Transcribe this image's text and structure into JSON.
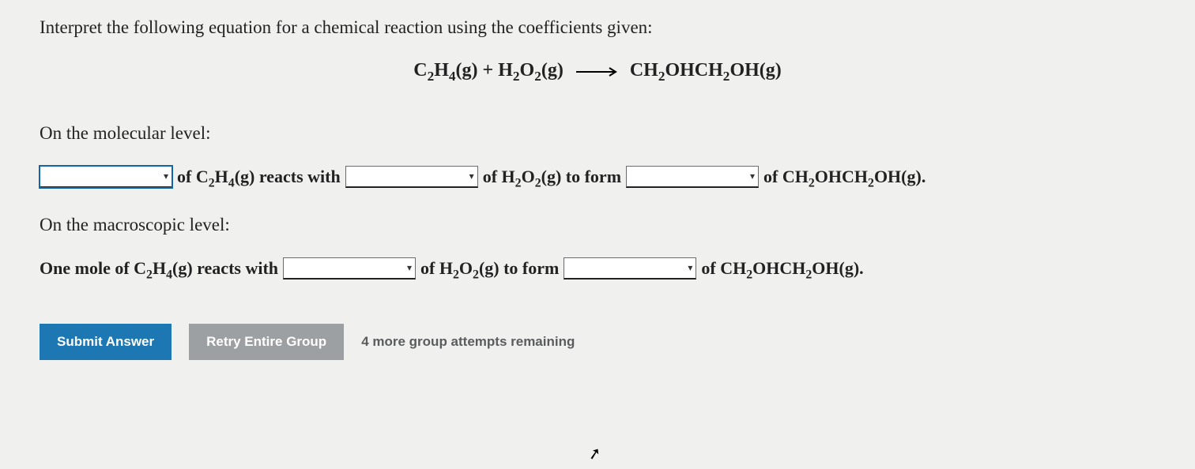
{
  "question": {
    "prompt": "Interpret the following equation for a chemical reaction using the coefficients given:",
    "equation": {
      "reactant1_html": "C<sub>2</sub>H<sub>4</sub>(g)",
      "plus": " + ",
      "reactant2_html": "H<sub>2</sub>O<sub>2</sub>(g)",
      "product_html": "CH<sub>2</sub>OHCH<sub>2</sub>OH(g)"
    }
  },
  "molecular": {
    "label": "On the molecular level:",
    "s1_html": " of <b>C<sub>2</sub>H<sub>4</sub>(g)</b> reacts with ",
    "s2_html": " of <b>H<sub>2</sub>O<sub>2</sub>(g)</b> to form ",
    "s3_html": " of <b>CH<sub>2</sub>OHCH<sub>2</sub>OH(g)</b>."
  },
  "macroscopic": {
    "label": "On the macroscopic level:",
    "lead_html": "<b>One</b> mole of <b>C<sub>2</sub>H<sub>4</sub>(g)</b> reacts with ",
    "s2_html": " of <b>H<sub>2</sub>O<sub>2</sub>(g)</b> to form ",
    "s3_html": " of <b>CH<sub>2</sub>OHCH<sub>2</sub>OH(g)</b>."
  },
  "dropdowns": {
    "molecular_1": "",
    "molecular_2": "",
    "molecular_3": "",
    "macro_1": "",
    "macro_2": ""
  },
  "buttons": {
    "submit": "Submit Answer",
    "retry": "Retry Entire Group"
  },
  "attempts_text": "4 more group attempts remaining",
  "colors": {
    "primary_button": "#1d77b3",
    "secondary_button": "#9da0a3",
    "background": "#f0f0ee",
    "focus_outline": "#1067a6"
  }
}
